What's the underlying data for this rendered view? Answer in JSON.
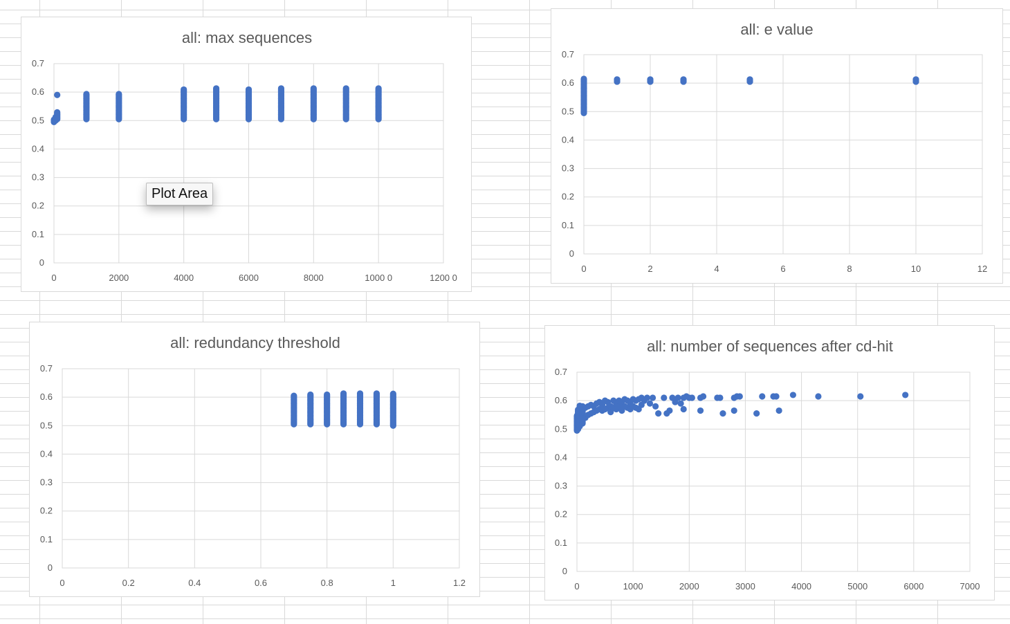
{
  "tooltip": {
    "text": "Plot Area"
  },
  "colors": {
    "series": "#4472c4",
    "grid": "#d9d9d9",
    "text": "#595959"
  },
  "chart_data": [
    {
      "type": "scatter",
      "title": "all: max sequences",
      "xlabel": "",
      "ylabel": "",
      "xlim": [
        0,
        12000
      ],
      "ylim": [
        0,
        0.7
      ],
      "xticks": [
        0,
        2000,
        4000,
        6000,
        8000,
        10000,
        12000
      ],
      "xtick_labels": [
        "0",
        "2000",
        "4000",
        "6000",
        "8000",
        "1000 0",
        "1200 0"
      ],
      "yticks": [
        0,
        0.1,
        0.2,
        0.3,
        0.4,
        0.5,
        0.6,
        0.7
      ],
      "ytick_labels": [
        "0",
        "0.1",
        "0.2",
        "0.3",
        "0.4",
        "0.5",
        "0.6",
        "0.7"
      ],
      "grid": true,
      "columns": [
        {
          "x": 0,
          "ymin": 0.495,
          "ymax": 0.505
        },
        {
          "x": 50,
          "ymin": 0.5,
          "ymax": 0.515
        },
        {
          "x": 100,
          "ymin": 0.505,
          "ymax": 0.53
        },
        {
          "x": 1000,
          "ymin": 0.505,
          "ymax": 0.595
        },
        {
          "x": 2000,
          "ymin": 0.505,
          "ymax": 0.595
        },
        {
          "x": 4000,
          "ymin": 0.505,
          "ymax": 0.61
        },
        {
          "x": 5000,
          "ymin": 0.505,
          "ymax": 0.615
        },
        {
          "x": 6000,
          "ymin": 0.505,
          "ymax": 0.61
        },
        {
          "x": 7000,
          "ymin": 0.505,
          "ymax": 0.615
        },
        {
          "x": 8000,
          "ymin": 0.505,
          "ymax": 0.615
        },
        {
          "x": 9000,
          "ymin": 0.505,
          "ymax": 0.615
        },
        {
          "x": 10000,
          "ymin": 0.505,
          "ymax": 0.615
        }
      ],
      "points": [
        [
          100,
          0.59
        ]
      ]
    },
    {
      "type": "scatter",
      "title": "all: e value",
      "xlabel": "",
      "ylabel": "",
      "xlim": [
        0,
        12
      ],
      "ylim": [
        0,
        0.7
      ],
      "xticks": [
        0,
        2,
        4,
        6,
        8,
        10,
        12
      ],
      "xtick_labels": [
        "0",
        "2",
        "4",
        "6",
        "8",
        "10",
        "12"
      ],
      "yticks": [
        0,
        0.1,
        0.2,
        0.3,
        0.4,
        0.5,
        0.6,
        0.7
      ],
      "ytick_labels": [
        "0",
        "0.1",
        "0.2",
        "0.3",
        "0.4",
        "0.5",
        "0.6",
        "0.7"
      ],
      "grid": true,
      "columns": [
        {
          "x": 0,
          "ymin": 0.495,
          "ymax": 0.615
        },
        {
          "x": 1,
          "ymin": 0.605,
          "ymax": 0.615
        },
        {
          "x": 2,
          "ymin": 0.605,
          "ymax": 0.615
        },
        {
          "x": 3,
          "ymin": 0.605,
          "ymax": 0.615
        },
        {
          "x": 5,
          "ymin": 0.605,
          "ymax": 0.615
        },
        {
          "x": 10,
          "ymin": 0.605,
          "ymax": 0.615
        }
      ],
      "points": []
    },
    {
      "type": "scatter",
      "title": "all: redundancy threshold",
      "xlabel": "",
      "ylabel": "",
      "xlim": [
        0,
        1.2
      ],
      "ylim": [
        0,
        0.7
      ],
      "xticks": [
        0,
        0.2,
        0.4,
        0.6,
        0.8,
        1,
        1.2
      ],
      "xtick_labels": [
        "0",
        "0.2",
        "0.4",
        "0.6",
        "0.8",
        "1",
        "1.2"
      ],
      "yticks": [
        0,
        0.1,
        0.2,
        0.3,
        0.4,
        0.5,
        0.6,
        0.7
      ],
      "ytick_labels": [
        "0",
        "0.1",
        "0.2",
        "0.3",
        "0.4",
        "0.5",
        "0.6",
        "0.7"
      ],
      "grid": true,
      "columns": [
        {
          "x": 0.7,
          "ymin": 0.505,
          "ymax": 0.605
        },
        {
          "x": 0.75,
          "ymin": 0.505,
          "ymax": 0.61
        },
        {
          "x": 0.8,
          "ymin": 0.505,
          "ymax": 0.61
        },
        {
          "x": 0.85,
          "ymin": 0.505,
          "ymax": 0.615
        },
        {
          "x": 0.9,
          "ymin": 0.505,
          "ymax": 0.615
        },
        {
          "x": 0.95,
          "ymin": 0.505,
          "ymax": 0.615
        },
        {
          "x": 1.0,
          "ymin": 0.5,
          "ymax": 0.615
        }
      ],
      "points": []
    },
    {
      "type": "scatter",
      "title": "all: number of sequences after cd-hit",
      "xlabel": "",
      "ylabel": "",
      "xlim": [
        0,
        7000
      ],
      "ylim": [
        0,
        0.7
      ],
      "xticks": [
        0,
        1000,
        2000,
        3000,
        4000,
        5000,
        6000,
        7000
      ],
      "xtick_labels": [
        "0",
        "1000",
        "2000",
        "3000",
        "4000",
        "5000",
        "6000",
        "7000"
      ],
      "yticks": [
        0,
        0.1,
        0.2,
        0.3,
        0.4,
        0.5,
        0.6,
        0.7
      ],
      "ytick_labels": [
        "0",
        "0.1",
        "0.2",
        "0.3",
        "0.4",
        "0.5",
        "0.6",
        "0.7"
      ],
      "grid": true,
      "columns": [
        {
          "x": 0,
          "ymin": 0.495,
          "ymax": 0.55
        },
        {
          "x": 20,
          "ymin": 0.5,
          "ymax": 0.57
        },
        {
          "x": 50,
          "ymin": 0.51,
          "ymax": 0.585
        },
        {
          "x": 100,
          "ymin": 0.52,
          "ymax": 0.58
        }
      ],
      "points": [
        [
          150,
          0.54
        ],
        [
          150,
          0.575
        ],
        [
          200,
          0.55
        ],
        [
          200,
          0.58
        ],
        [
          250,
          0.555
        ],
        [
          250,
          0.585
        ],
        [
          300,
          0.56
        ],
        [
          300,
          0.58
        ],
        [
          350,
          0.565
        ],
        [
          350,
          0.59
        ],
        [
          400,
          0.57
        ],
        [
          400,
          0.595
        ],
        [
          450,
          0.565
        ],
        [
          450,
          0.585
        ],
        [
          500,
          0.57
        ],
        [
          500,
          0.6
        ],
        [
          550,
          0.575
        ],
        [
          550,
          0.595
        ],
        [
          600,
          0.56
        ],
        [
          600,
          0.58
        ],
        [
          650,
          0.575
        ],
        [
          650,
          0.6
        ],
        [
          700,
          0.57
        ],
        [
          700,
          0.59
        ],
        [
          750,
          0.58
        ],
        [
          750,
          0.6
        ],
        [
          800,
          0.565
        ],
        [
          800,
          0.595
        ],
        [
          850,
          0.58
        ],
        [
          850,
          0.605
        ],
        [
          900,
          0.575
        ],
        [
          900,
          0.6
        ],
        [
          950,
          0.57
        ],
        [
          950,
          0.59
        ],
        [
          1000,
          0.58
        ],
        [
          1000,
          0.605
        ],
        [
          1050,
          0.575
        ],
        [
          1050,
          0.6
        ],
        [
          1100,
          0.57
        ],
        [
          1100,
          0.605
        ],
        [
          1150,
          0.585
        ],
        [
          1150,
          0.61
        ],
        [
          1200,
          0.6
        ],
        [
          1250,
          0.61
        ],
        [
          1300,
          0.59
        ],
        [
          1350,
          0.61
        ],
        [
          1400,
          0.58
        ],
        [
          1450,
          0.555
        ],
        [
          1550,
          0.61
        ],
        [
          1600,
          0.555
        ],
        [
          1650,
          0.565
        ],
        [
          1700,
          0.61
        ],
        [
          1750,
          0.595
        ],
        [
          1800,
          0.61
        ],
        [
          1850,
          0.59
        ],
        [
          1900,
          0.61
        ],
        [
          1900,
          0.57
        ],
        [
          1950,
          0.615
        ],
        [
          2000,
          0.61
        ],
        [
          2050,
          0.61
        ],
        [
          2200,
          0.61
        ],
        [
          2200,
          0.565
        ],
        [
          2250,
          0.615
        ],
        [
          2500,
          0.61
        ],
        [
          2550,
          0.61
        ],
        [
          2600,
          0.555
        ],
        [
          2800,
          0.61
        ],
        [
          2800,
          0.565
        ],
        [
          2850,
          0.615
        ],
        [
          2900,
          0.615
        ],
        [
          3200,
          0.555
        ],
        [
          3300,
          0.615
        ],
        [
          3500,
          0.615
        ],
        [
          3550,
          0.615
        ],
        [
          3600,
          0.565
        ],
        [
          3850,
          0.62
        ],
        [
          4300,
          0.615
        ],
        [
          5050,
          0.615
        ],
        [
          5850,
          0.62
        ]
      ]
    }
  ]
}
